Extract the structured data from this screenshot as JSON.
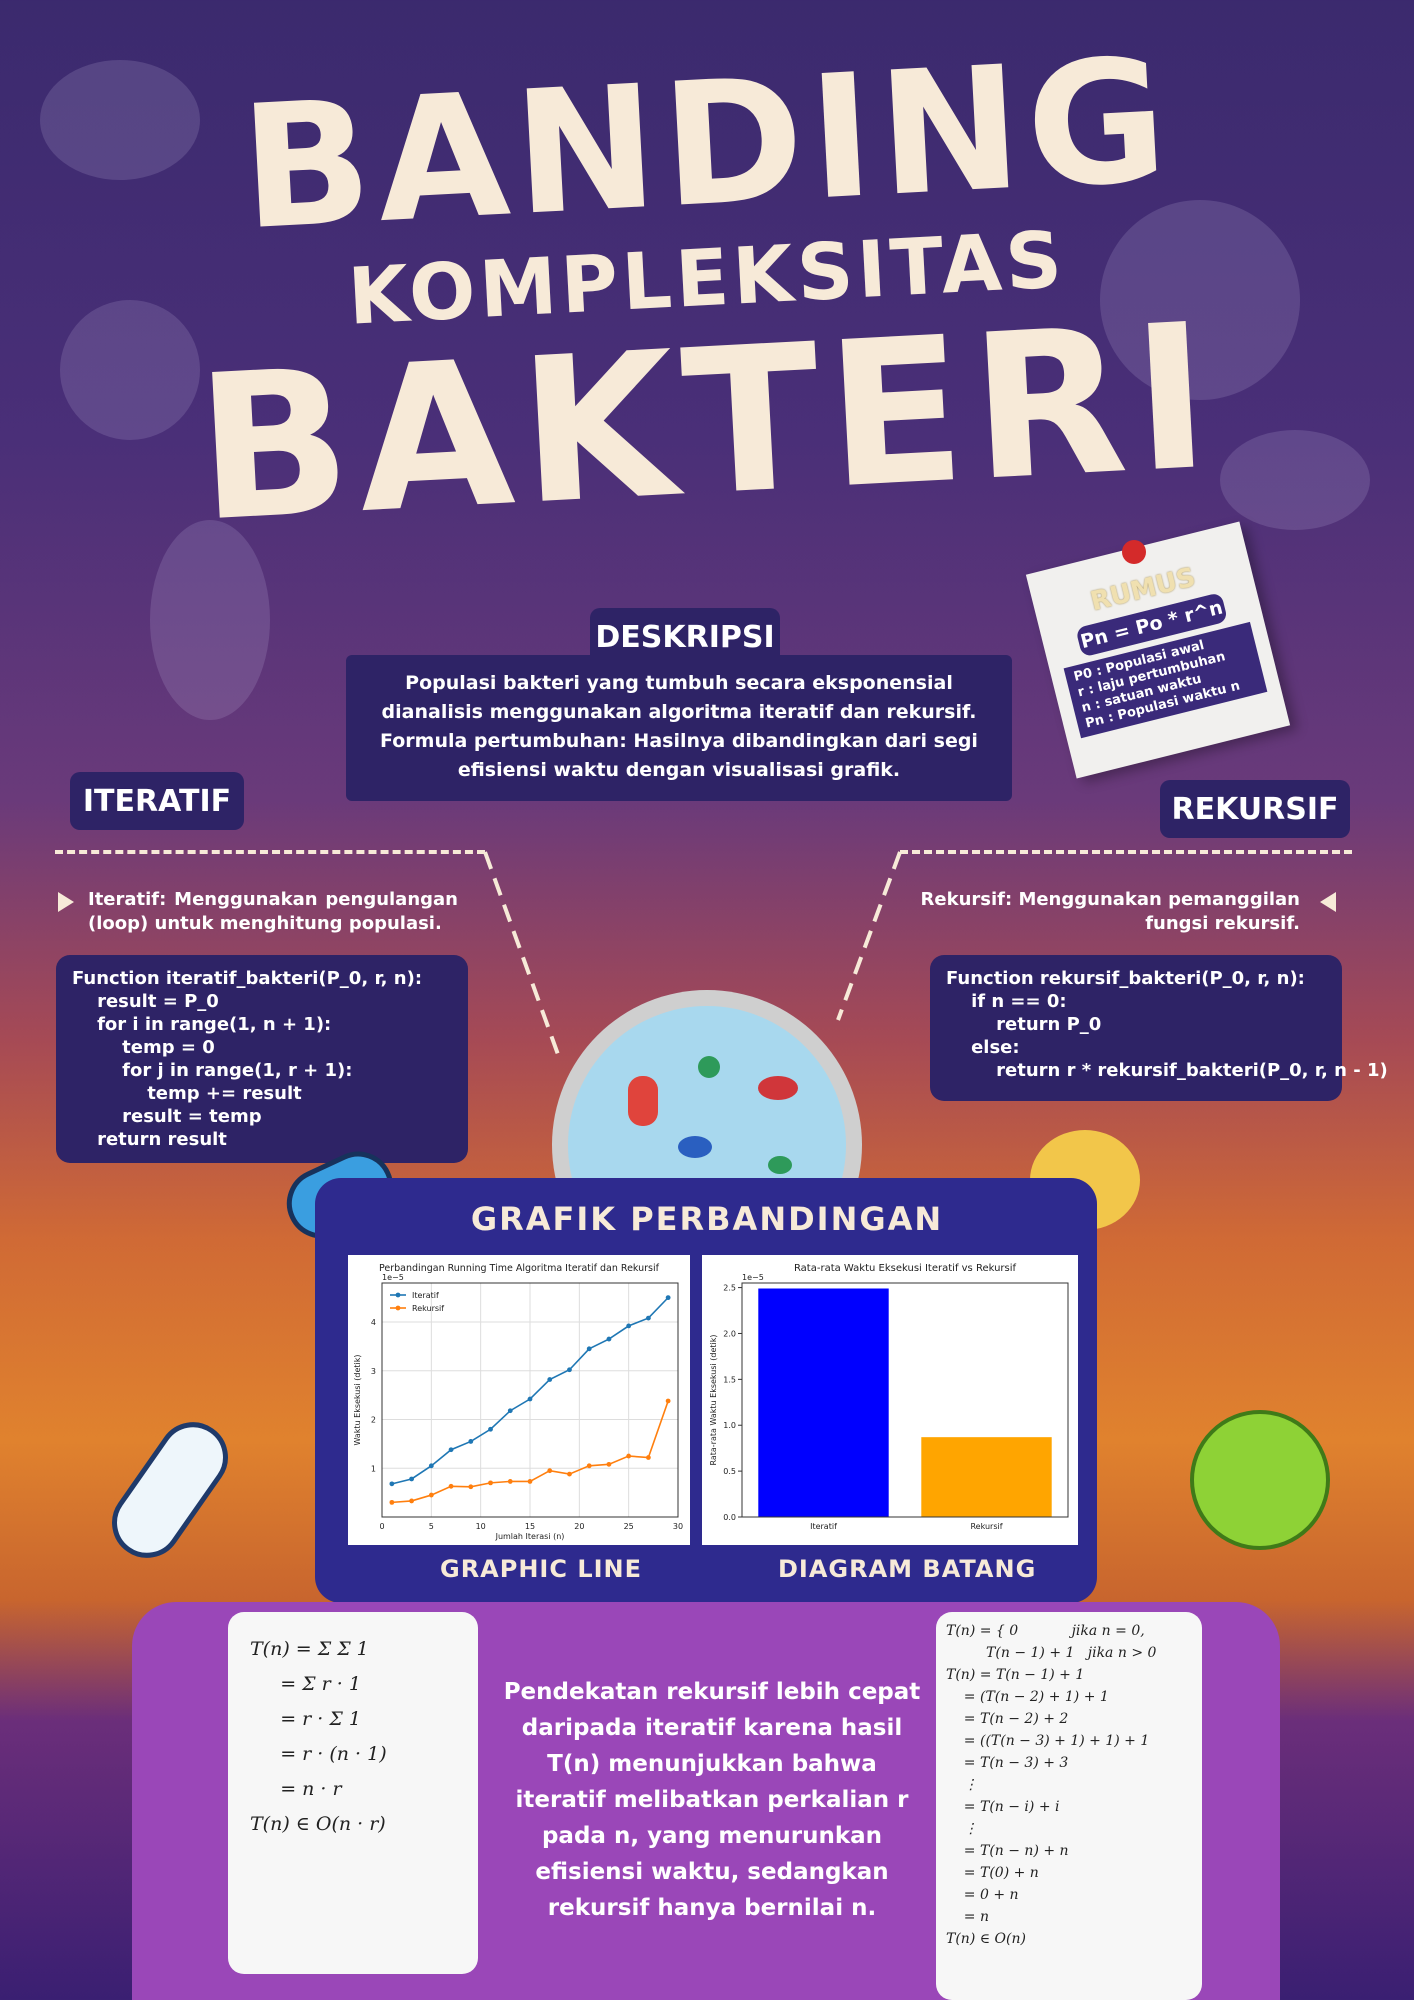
{
  "title": {
    "line1": "BANDING",
    "line2": "KOMPLEKSITAS",
    "line3": "BAKTERI"
  },
  "deskripsi": {
    "heading": "DESKRIPSI",
    "text": "Populasi bakteri yang tumbuh secara eksponensial dianalisis menggunakan algoritma iteratif dan rekursif. Formula pertumbuhan:  Hasilnya dibandingkan dari segi efisiensi waktu dengan visualisasi grafik."
  },
  "rumus": {
    "title": "RUMUS",
    "formula": "Pn = Po * r^n",
    "legend": [
      "P0 : Populasi awal",
      "r : laju pertumbuhan",
      "n : satuan waktu",
      "Pn : Populasi waktu n"
    ]
  },
  "iteratif": {
    "heading": "ITERATIF",
    "text": "Iteratif: Menggunakan pengulangan (loop) untuk menghitung populasi.",
    "code": "Function iteratif_bakteri(P_0, r, n):\n    result = P_0\n    for i in range(1, n + 1):\n        temp = 0\n        for j in range(1, r + 1):\n            temp += result\n        result = temp\n    return result"
  },
  "rekursif": {
    "heading": "REKURSIF",
    "text": "Rekursif: Menggunakan pemanggilan fungsi rekursif.",
    "code": "Function rekursif_bakteri(P_0, r, n):\n    if n == 0:\n        return P_0\n    else:\n        return r * rekursif_bakteri(P_0, r, n - 1)"
  },
  "grafik": {
    "heading": "GRAFIK PERBANDINGAN",
    "line_label": "GRAPHIC LINE",
    "bar_label": "DIAGRAM BATANG"
  },
  "chart_data": [
    {
      "type": "line",
      "title": "Perbandingan Running Time Algoritma Iteratif dan Rekursif",
      "xlabel": "Jumlah Iterasi (n)",
      "ylabel": "Waktu Eksekusi (detik)",
      "y_multiplier": "1e−5",
      "xlim": [
        0,
        30
      ],
      "ylim": [
        0,
        4.8
      ],
      "xticks": [
        0,
        5,
        10,
        15,
        20,
        25,
        30
      ],
      "yticks": [
        1,
        2,
        3,
        4
      ],
      "grid": true,
      "legend": "top-left",
      "x": [
        1,
        3,
        5,
        7,
        9,
        11,
        13,
        15,
        17,
        19,
        21,
        23,
        25,
        27,
        29
      ],
      "series": [
        {
          "name": "Iteratif",
          "color": "#1f77b4",
          "values": [
            0.68,
            0.78,
            1.05,
            1.38,
            1.55,
            1.8,
            2.18,
            2.42,
            2.82,
            3.02,
            3.45,
            3.65,
            3.92,
            4.08,
            4.5
          ]
        },
        {
          "name": "Rekursif",
          "color": "#ff7f0e",
          "values": [
            0.3,
            0.33,
            0.45,
            0.63,
            0.62,
            0.7,
            0.73,
            0.73,
            0.95,
            0.88,
            1.05,
            1.08,
            1.25,
            1.22,
            2.38
          ]
        }
      ]
    },
    {
      "type": "bar",
      "title": "Rata-rata Waktu Eksekusi Iteratif vs Rekursif",
      "xlabel": "",
      "ylabel": "Rata-rata Waktu Eksekusi (detik)",
      "y_multiplier": "1e−5",
      "ylim": [
        0,
        2.55
      ],
      "yticks": [
        0.0,
        0.5,
        1.0,
        1.5,
        2.0,
        2.5
      ],
      "categories": [
        "Iteratif",
        "Rekursif"
      ],
      "values": [
        2.49,
        0.87
      ],
      "colors": [
        "#0000ff",
        "#ffa500"
      ]
    }
  ],
  "math_left": [
    "T(n) = Σ Σ 1",
    "     = Σ r · 1",
    "     = r · Σ 1",
    "     = r · (n · 1)",
    "     = n · r",
    "T(n) ∈ O(n · r)"
  ],
  "math_right": [
    "T(n) = { 0            jika n = 0,",
    "         T(n − 1) + 1   jika n > 0",
    "T(n) = T(n − 1) + 1",
    "    = (T(n − 2) + 1) + 1",
    "    = T(n − 2) + 2",
    "    = ((T(n − 3) + 1) + 1) + 1",
    "    = T(n − 3) + 3",
    "    ⋮",
    "    = T(n − i) + i",
    "    ⋮",
    "    = T(n − n) + n",
    "    = T(0) + n",
    "    = 0 + n",
    "    = n",
    "T(n) ∈ O(n)"
  ],
  "conclusion": "Pendekatan rekursif lebih cepat daripada iteratif karena hasil T(n) menunjukkan bahwa iteratif melibatkan perkalian r pada n, yang menurunkan efisiensi waktu, sedangkan rekursif hanya bernilai n."
}
